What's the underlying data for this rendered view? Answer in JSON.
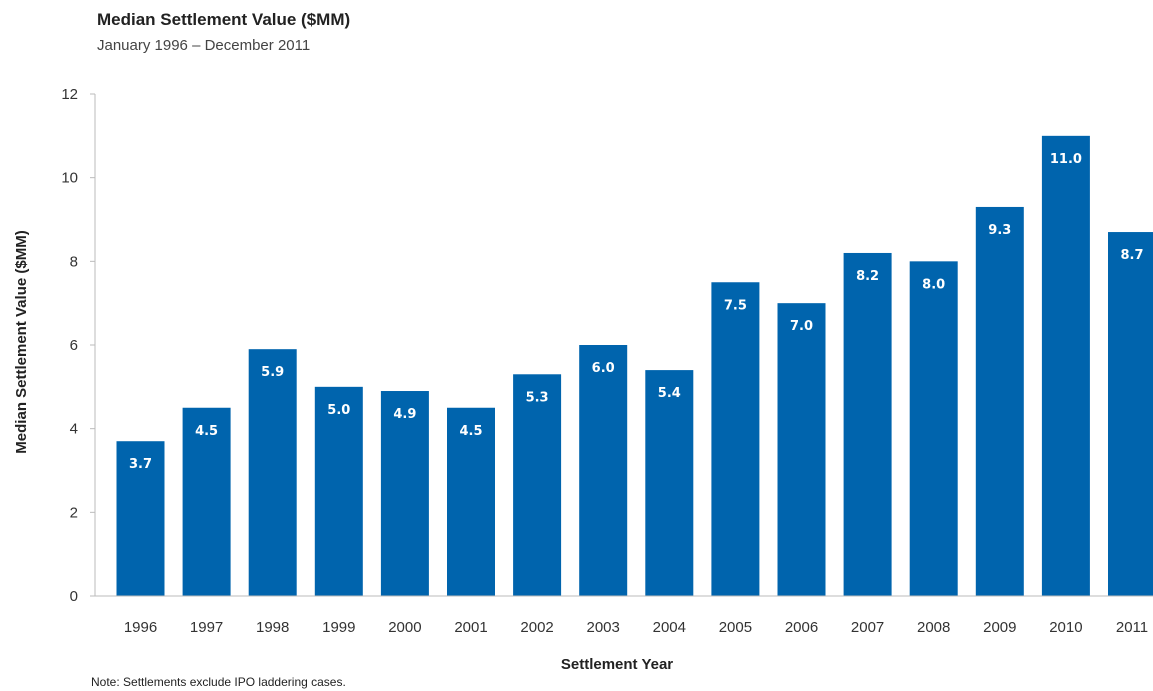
{
  "title": "Median Settlement Value ($MM)",
  "subtitle": "January 1996 – December 2011",
  "note": "Note: Settlements exclude IPO laddering cases.",
  "colors": {
    "bar": "#0064ad",
    "axis": "#bbbbbb",
    "label": "#ffffff"
  },
  "chart_data": {
    "type": "bar",
    "title": "Median Settlement Value ($MM)",
    "subtitle": "January 1996 – December 2011",
    "xlabel": "Settlement Year",
    "ylabel": "Median Settlement Value ($MM)",
    "ylim": [
      0,
      12
    ],
    "yticks": [
      0,
      2,
      4,
      6,
      8,
      10,
      12
    ],
    "categories": [
      "1996",
      "1997",
      "1998",
      "1999",
      "2000",
      "2001",
      "2002",
      "2003",
      "2004",
      "2005",
      "2006",
      "2007",
      "2008",
      "2009",
      "2010",
      "2011"
    ],
    "values": [
      3.7,
      4.5,
      5.9,
      5.0,
      4.9,
      4.5,
      5.3,
      6.0,
      5.4,
      7.5,
      7.0,
      8.2,
      8.0,
      9.3,
      11.0,
      8.7
    ],
    "data_labels": [
      "3.7",
      "4.5",
      "5.9",
      "5.0",
      "4.9",
      "4.5",
      "5.3",
      "6.0",
      "5.4",
      "7.5",
      "7.0",
      "8.2",
      "8.0",
      "9.3",
      "11.0",
      "8.7"
    ],
    "grid": false,
    "legend": "none"
  }
}
